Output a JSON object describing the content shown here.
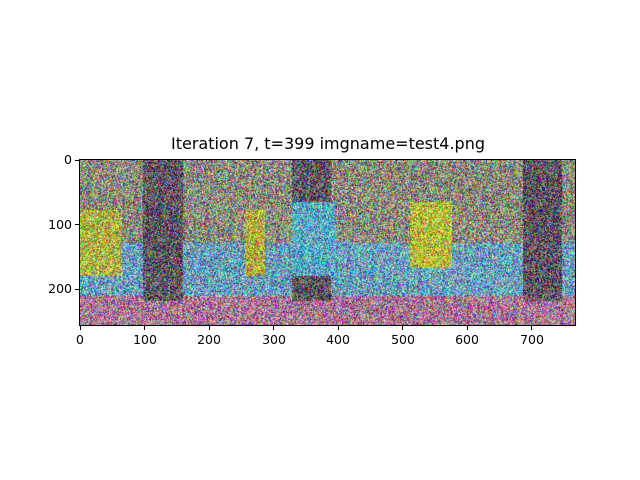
{
  "figure": {
    "title": "Iteration 7, t=399 imgname=test4.png"
  },
  "image_axes": {
    "y_ticks": [
      "0",
      "100",
      "200"
    ],
    "x_ticks": [
      "0",
      "100",
      "200",
      "300",
      "400",
      "500",
      "600",
      "700"
    ],
    "x_range": [
      0,
      768
    ],
    "y_range": [
      0,
      256
    ]
  },
  "image_content": {
    "description_icon": "noisy-diffusion-image",
    "palette": [
      "#7f8a6a",
      "#4aa0c8",
      "#b9c23a",
      "#8b6f7d",
      "#3a3a3a",
      "#c85a7a"
    ]
  }
}
